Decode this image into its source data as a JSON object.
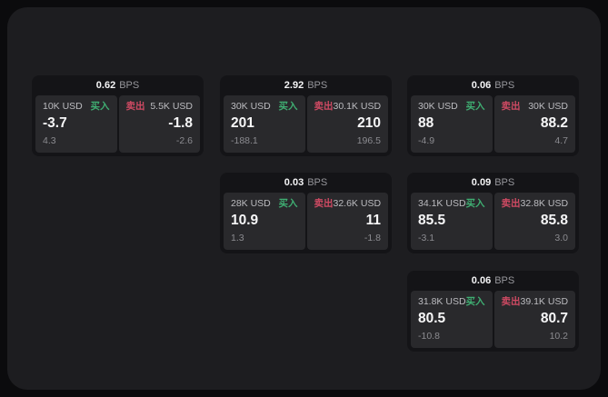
{
  "labels": {
    "bps_unit": "BPS",
    "buy": "买入",
    "sell": "卖出"
  },
  "colors": {
    "buy_green": "#3fae72",
    "sell_red": "#cf4a63",
    "page_bg": "#0b0b0d",
    "container_bg": "#1d1d20",
    "card_bg": "#141417",
    "panel_bg": "#29292c"
  },
  "cards": [
    {
      "bps": "0.62",
      "buy": {
        "amount": "10K USD",
        "price": "-3.7",
        "sub": "4.3"
      },
      "sell": {
        "amount": "5.5K USD",
        "price": "-1.8",
        "sub": "-2.6"
      }
    },
    {
      "bps": "2.92",
      "buy": {
        "amount": "30K USD",
        "price": "201",
        "sub": "-188.1"
      },
      "sell": {
        "amount": "30.1K USD",
        "price": "210",
        "sub": "196.5"
      }
    },
    {
      "bps": "0.06",
      "buy": {
        "amount": "30K USD",
        "price": "88",
        "sub": "-4.9"
      },
      "sell": {
        "amount": "30K USD",
        "price": "88.2",
        "sub": "4.7"
      }
    },
    {
      "bps": "0.03",
      "buy": {
        "amount": "28K USD",
        "price": "10.9",
        "sub": "1.3"
      },
      "sell": {
        "amount": "32.6K USD",
        "price": "11",
        "sub": "-1.8"
      }
    },
    {
      "bps": "0.09",
      "buy": {
        "amount": "34.1K USD",
        "price": "85.5",
        "sub": "-3.1"
      },
      "sell": {
        "amount": "32.8K USD",
        "price": "85.8",
        "sub": "3.0"
      }
    },
    {
      "bps": "0.06",
      "buy": {
        "amount": "31.8K USD",
        "price": "80.5",
        "sub": "-10.8"
      },
      "sell": {
        "amount": "39.1K USD",
        "price": "80.7",
        "sub": "10.2"
      }
    }
  ]
}
